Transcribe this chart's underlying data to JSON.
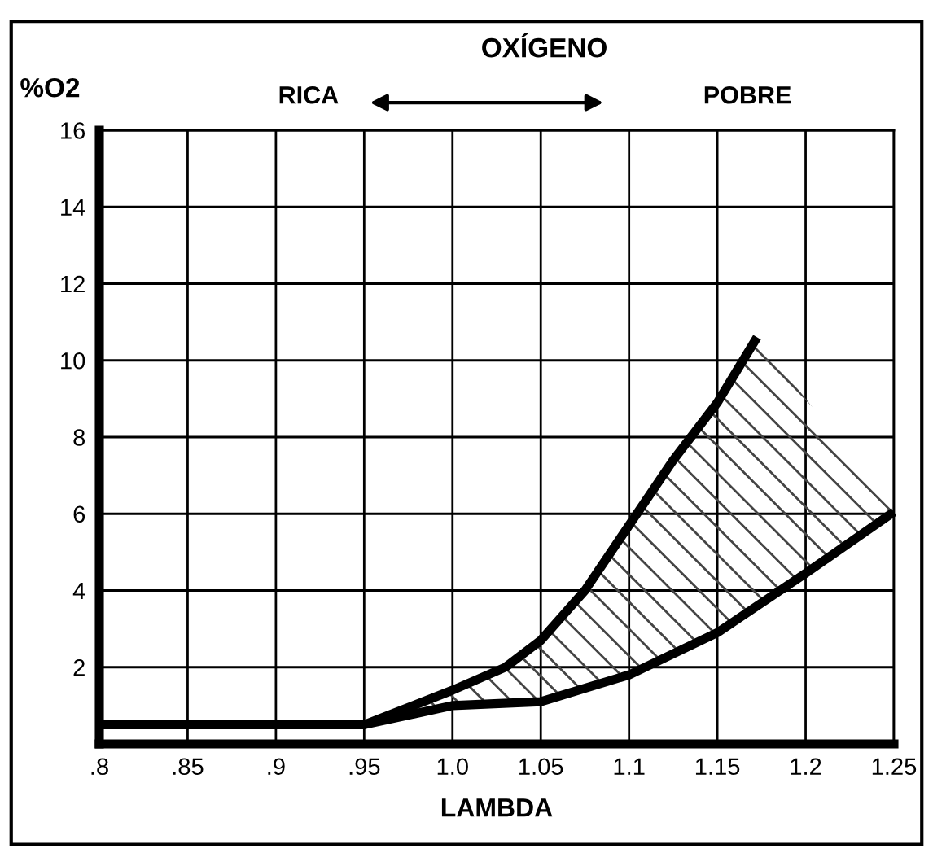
{
  "chart_data": {
    "type": "line",
    "title": "OXÍGENO",
    "xlabel": "LAMBDA",
    "ylabel": "%O2",
    "annotations": [
      "RICA",
      "POBRE"
    ],
    "series": [
      {
        "color": "#000000",
        "x": [
          0.8,
          0.95,
          1.0,
          1.03,
          1.05,
          1.075,
          1.1,
          1.125,
          1.15,
          1.1725
        ],
        "values": [
          0.5,
          0.5,
          1.4,
          2.0,
          2.7,
          4.0,
          5.7,
          7.4,
          8.9,
          10.6
        ]
      },
      {
        "color": "#000000",
        "x": [
          0.8,
          0.95,
          1.0,
          1.05,
          1.1,
          1.15,
          1.2,
          1.25
        ],
        "values": [
          0.5,
          0.5,
          1.0,
          1.1,
          1.8,
          2.9,
          4.45,
          6.05
        ]
      },
      {
        "type": "area",
        "color": "#444444",
        "x": [
          0.95,
          1.0,
          1.03,
          1.05,
          1.075,
          1.1,
          1.125,
          1.15,
          1.1725,
          1.2,
          1.25
        ],
        "values": [
          0.5,
          1.4,
          2.0,
          2.7,
          4.0,
          5.7,
          7.4,
          8.9,
          10.6,
          9.0,
          6.05
        ]
      }
    ],
    "xlim": [
      0.8,
      1.25
    ],
    "ylim": [
      0,
      16
    ],
    "xticks": [
      {
        "value": 0.8,
        "label": ".8"
      },
      {
        "value": 0.85,
        "label": ".85"
      },
      {
        "value": 0.9,
        "label": ".9"
      },
      {
        "value": 0.95,
        "label": ".95"
      },
      {
        "value": 1.0,
        "label": "1.0"
      },
      {
        "value": 1.05,
        "label": "1.05"
      },
      {
        "value": 1.1,
        "label": "1.1"
      },
      {
        "value": 1.15,
        "label": "1.15"
      },
      {
        "value": 1.2,
        "label": "1.2"
      },
      {
        "value": 1.25,
        "label": "1.25"
      }
    ],
    "yticks": [
      2,
      4,
      6,
      8,
      10,
      12,
      14,
      16
    ],
    "grid": true,
    "line_style": "solid",
    "marker": "none"
  }
}
